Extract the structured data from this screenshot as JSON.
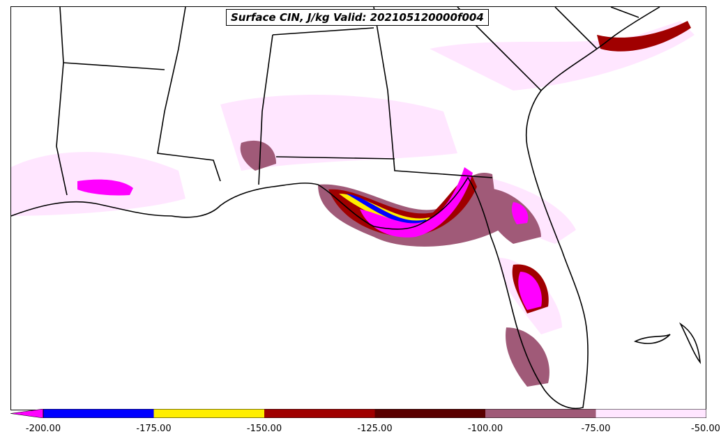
{
  "map": {
    "title": "Surface CIN, J/kg Valid: 202105120000f004",
    "colors": {
      "lt_-200": "#ff00ff",
      "-200_-175": "#0000ff",
      "-175_-150": "#ffee00",
      "-150_-125": "#a00000",
      "-125_-100": "#5a0000",
      "-100_-75": "#a05a78",
      "-75_-50": "#ffe6ff",
      "land_outline": "#000000"
    }
  },
  "colorbar": {
    "ticks": [
      "-200.00",
      "-175.00",
      "-150.00",
      "-125.00",
      "-100.00",
      "-75.00",
      "-50.00"
    ],
    "values": [
      -200,
      -175,
      -150,
      -125,
      -100,
      -75,
      -50
    ],
    "extend": "min"
  }
}
